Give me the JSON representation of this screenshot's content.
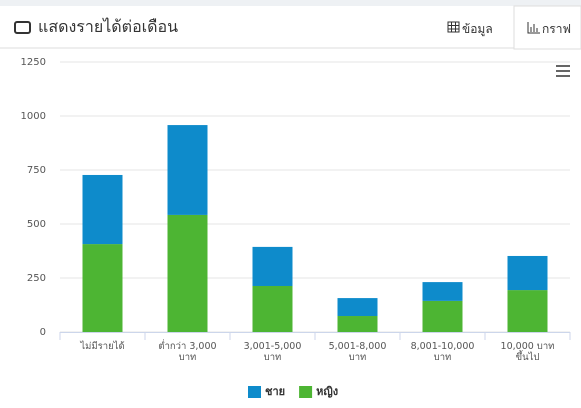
{
  "header": {
    "title": "แสดงรายได้ต่อเดือน",
    "tabs": [
      "ข้อมูล",
      "กราฟ"
    ]
  },
  "chart_data": {
    "type": "bar",
    "stacked": true,
    "categories": [
      "ไม่มีรายได้",
      "ต่ำกว่า 3,000 บาท",
      "3,001-5,000 บาท",
      "5,001-8,000 บาท",
      "8,001-10,000 บาท",
      "10,000 บาทขึ้นไป"
    ],
    "series": [
      {
        "name": "หญิง",
        "color": "#4db533",
        "values": [
          407,
          542,
          213,
          74,
          144,
          194
        ]
      },
      {
        "name": "ชาย",
        "color": "#0e8bcb",
        "values": [
          320,
          416,
          181,
          83,
          87,
          158
        ]
      }
    ],
    "ylim": [
      0,
      1250
    ],
    "yticks": [
      0,
      250,
      500,
      750,
      1000,
      1250
    ],
    "grid": true,
    "legend": "bottom"
  }
}
